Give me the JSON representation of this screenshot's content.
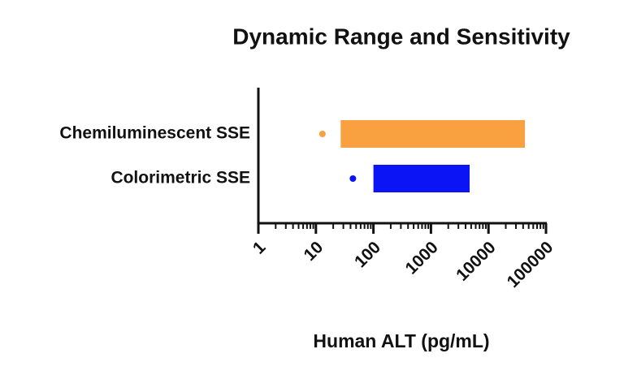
{
  "chart_data": {
    "type": "floating-bar",
    "title": "Dynamic Range and Sensitivity",
    "xlabel": "Human ALT (pg/mL)",
    "categories": [
      "Chemiluminescent SSE",
      "Colorimetric SSE"
    ],
    "low": [
      27,
      100
    ],
    "high": [
      43000,
      4700
    ],
    "sensitivity": [
      13,
      44
    ],
    "colors": [
      "#f9a040",
      "#0a14f5"
    ],
    "xscale": "log",
    "xlim": [
      1,
      100000
    ],
    "xticks": [
      1,
      10,
      100,
      1000,
      10000,
      100000
    ],
    "xminor": [
      2,
      3,
      4,
      5,
      6,
      7,
      8,
      9,
      20,
      30,
      40,
      50,
      60,
      70,
      80,
      90,
      200,
      300,
      400,
      500,
      600,
      700,
      800,
      900,
      2000,
      3000,
      4000,
      5000,
      6000,
      7000,
      8000,
      9000,
      20000,
      30000,
      40000,
      50000,
      60000,
      70000,
      80000,
      90000
    ]
  }
}
